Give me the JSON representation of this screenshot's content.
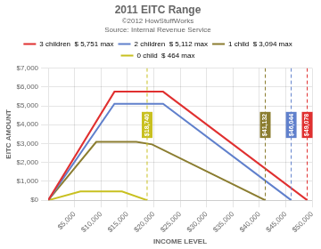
{
  "chart_data": {
    "type": "line",
    "title": "2011 EITC Range",
    "subtitle": "©2012 HowStuffWorks",
    "source": "Source: Internal Revenue Service",
    "xlabel": "INCOME LEVEL",
    "ylabel": "EITC AMOUNT",
    "series": [
      {
        "name": "3 children",
        "max_label": "$ 5,751 max",
        "color": "#e03030",
        "x": [
          0,
          12550,
          17090,
          21770,
          49078
        ],
        "values": [
          0,
          5751,
          5751,
          5751,
          0
        ]
      },
      {
        "name": "2 children",
        "max_label": "$ 5,112 max",
        "color": "#6080cc",
        "x": [
          0,
          12550,
          17090,
          21770,
          46044
        ],
        "values": [
          0,
          5112,
          5112,
          5112,
          0
        ]
      },
      {
        "name": "1 child",
        "max_label": "$ 3,094 max",
        "color": "#8b7d30",
        "x": [
          0,
          9100,
          16690,
          19680,
          41132
        ],
        "values": [
          0,
          3094,
          3094,
          2960,
          0
        ]
      },
      {
        "name": "0 child",
        "max_label": "$ 464 max",
        "color": "#c8c020",
        "x": [
          0,
          6100,
          7970,
          13980,
          18740
        ],
        "values": [
          0,
          464,
          464,
          464,
          0
        ]
      }
    ],
    "annotations": [
      {
        "x": 18740,
        "label": "$18,740",
        "color": "#c8c020"
      },
      {
        "x": 41132,
        "label": "$41,132",
        "color": "#8b7d30"
      },
      {
        "x": 46044,
        "label": "$46,044",
        "color": "#6080cc"
      },
      {
        "x": 49078,
        "label": "$49,078",
        "color": "#e03030"
      }
    ],
    "xlim": [
      0,
      50000
    ],
    "ylim": [
      0,
      7000
    ],
    "xticks": [
      {
        "value": 5000,
        "label": "$5,000"
      },
      {
        "value": 10000,
        "label": "$10,000"
      },
      {
        "value": 15000,
        "label": "$15,000"
      },
      {
        "value": 20000,
        "label": "$20,000"
      },
      {
        "value": 25000,
        "label": "$25,000"
      },
      {
        "value": 30000,
        "label": "$30,000"
      },
      {
        "value": 35000,
        "label": "$35,000"
      },
      {
        "value": 40000,
        "label": "$40,000"
      },
      {
        "value": 45000,
        "label": "$45,000"
      },
      {
        "value": 50000,
        "label": "$50,000"
      }
    ],
    "yticks": [
      {
        "value": 0,
        "label": "$0"
      },
      {
        "value": 1000,
        "label": "$1,000"
      },
      {
        "value": 2000,
        "label": "$2,000"
      },
      {
        "value": 3000,
        "label": "$3,000"
      },
      {
        "value": 4000,
        "label": "$4,000"
      },
      {
        "value": 5000,
        "label": "$5,000"
      },
      {
        "value": 6000,
        "label": "$6,000"
      },
      {
        "value": 7000,
        "label": "$7,000"
      }
    ],
    "grid": true,
    "legend": "top"
  }
}
